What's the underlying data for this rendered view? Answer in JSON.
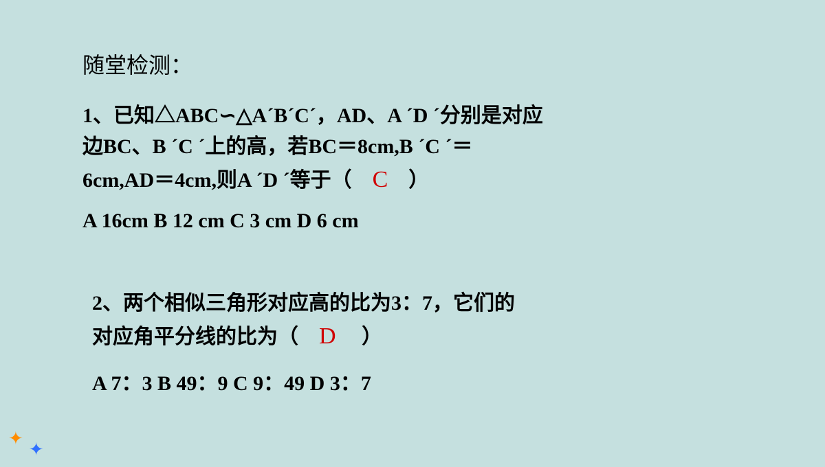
{
  "colors": {
    "background": "#c5e0df",
    "text": "#000000",
    "answer": "#d00000",
    "star1": "#ff8c00",
    "star2": "#3070ff"
  },
  "title": "随堂检测：",
  "q1": {
    "line1": "1、已知△ABC∽△A´B´C´，AD、A ´D ´分别是对应",
    "line2": "边BC、B ´C ´上的高，若BC＝8cm,B ´C ´＝",
    "line3a": "6cm,AD＝4cm,则A ´D ´等于（",
    "answer": "C",
    "line3b": "）",
    "options": "A  16cm    B  12 cm      C  3 cm        D  6 cm"
  },
  "q2": {
    "line1": "2、两个相似三角形对应高的比为3：7，它们的",
    "line2a": "对应角平分线的比为（",
    "answer": "D",
    "line2b": "）",
    "options": "A  7：3      B  49：9      C  9：49     D 3：7"
  },
  "stars": {
    "s1": "✦",
    "s2": "✦"
  }
}
